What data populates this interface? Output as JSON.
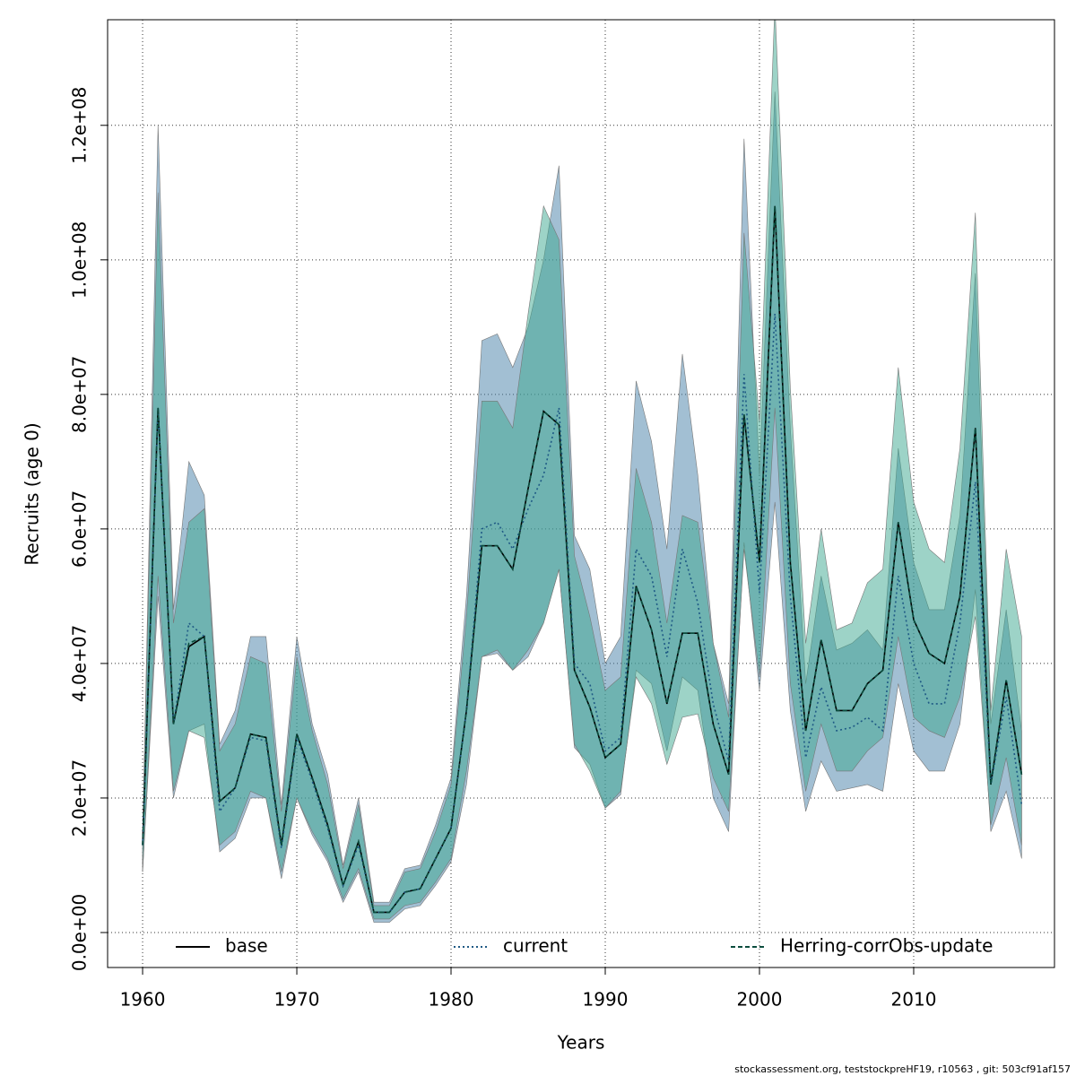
{
  "chart_data": {
    "type": "line",
    "xlabel": "Years",
    "ylabel": "Recruits (age 0)",
    "footnote": "stockassessment.org, teststockpreHF19, r10563 , git: 503cf91af157",
    "xlim": [
      1957.73,
      2019.13
    ],
    "ylim": [
      -5200000.0,
      135700000.0
    ],
    "xticks": [
      1960,
      1970,
      1980,
      1990,
      2000,
      2010
    ],
    "yticks": [
      {
        "value": 0,
        "label": "0.0e+00"
      },
      {
        "value": 20000000.0,
        "label": "2.0e+07"
      },
      {
        "value": 40000000.0,
        "label": "4.0e+07"
      },
      {
        "value": 60000000.0,
        "label": "6.0e+07"
      },
      {
        "value": 80000000.0,
        "label": "8.0e+07"
      },
      {
        "value": 100000000.0,
        "label": "1.0e+08"
      },
      {
        "value": 120000000.0,
        "label": "1.2e+08"
      }
    ],
    "grid": true,
    "legend": "bottom",
    "x": [
      1960,
      1961,
      1962,
      1963,
      1964,
      1965,
      1966,
      1967,
      1968,
      1969,
      1970,
      1971,
      1972,
      1973,
      1974,
      1975,
      1976,
      1977,
      1978,
      1979,
      1980,
      1981,
      1982,
      1983,
      1984,
      1985,
      1986,
      1987,
      1988,
      1989,
      1990,
      1991,
      1992,
      1993,
      1994,
      1995,
      1996,
      1997,
      1998,
      1999,
      2000,
      2001,
      2002,
      2003,
      2004,
      2005,
      2006,
      2007,
      2008,
      2009,
      2010,
      2011,
      2012,
      2013,
      2014,
      2015,
      2016,
      2017
    ],
    "series": [
      {
        "name": "base",
        "color": "#000000",
        "line_style": "solid",
        "values": [
          13000000.0,
          78000000.0,
          31000000.0,
          42500000.0,
          44000000.0,
          19500000.0,
          21500000.0,
          29500000.0,
          29000000.0,
          13000000.0,
          29500000.0,
          23000000.0,
          16000000.0,
          7000000.0,
          13500000.0,
          3000000.0,
          3000000.0,
          6000000.0,
          6500000.0,
          11000000.0,
          15500000.0,
          33000000.0,
          57500000.0,
          57500000.0,
          54000000.0,
          66000000.0,
          77500000.0,
          75500000.0,
          39000000.0,
          33500000.0,
          26000000.0,
          28000000.0,
          51500000.0,
          45000000.0,
          34000000.0,
          44500000.0,
          44500000.0,
          31000000.0,
          23500000.0,
          77000000.0,
          55000000.0,
          108000000.0,
          55000000.0,
          30000000.0,
          43500000.0,
          33000000.0,
          33000000.0,
          37000000.0,
          39000000.0,
          61000000.0,
          46500000.0,
          41500000.0,
          40000000.0,
          50000000.0,
          75000000.0,
          22000000.0,
          37500000.0,
          23500000.0
        ]
      },
      {
        "name": "current",
        "color": "#1f5a85",
        "line_style": "dotted",
        "band_color": "#467fa7",
        "values": [
          13000000.0,
          78000000.0,
          31000000.0,
          46000000.0,
          44000000.0,
          18000000.0,
          21500000.0,
          29000000.0,
          28500000.0,
          12500000.0,
          29000000.0,
          22500000.0,
          15500000.0,
          7000000.0,
          13000000.0,
          3000000.0,
          3000000.0,
          6000000.0,
          6500000.0,
          11000000.0,
          15500000.0,
          33000000.0,
          60000000.0,
          61000000.0,
          57000000.0,
          63000000.0,
          68000000.0,
          78000000.0,
          40000000.0,
          37000000.0,
          27000000.0,
          29000000.0,
          57000000.0,
          53000000.0,
          41000000.0,
          57000000.0,
          49000000.0,
          34000000.0,
          25500000.0,
          83000000.0,
          50500000.0,
          92000000.0,
          50000000.0,
          26000000.0,
          36500000.0,
          30000000.0,
          30500000.0,
          32000000.0,
          30000000.0,
          53000000.0,
          40000000.0,
          34000000.0,
          34000000.0,
          46000000.0,
          67000000.0,
          22000000.0,
          35000000.0,
          19000000.0
        ],
        "lower": [
          9000000.0,
          50000000.0,
          20000000.0,
          30000000.0,
          31000000.0,
          12000000.0,
          14000000.0,
          20000000.0,
          20000000.0,
          8000000.0,
          20000000.0,
          14500000.0,
          10500000.0,
          4500000.0,
          9000000.0,
          1500000.0,
          1500000.0,
          3500000.0,
          4000000.0,
          7000000.0,
          10500000.0,
          22000000.0,
          41000000.0,
          41500000.0,
          39000000.0,
          41000000.0,
          46000000.0,
          54000000.0,
          27500000.0,
          25000000.0,
          18500000.0,
          20500000.0,
          39000000.0,
          37000000.0,
          27000000.0,
          38000000.0,
          36000000.0,
          20000000.0,
          15000000.0,
          58000000.0,
          36000000.0,
          64000000.0,
          33000000.0,
          18000000.0,
          25500000.0,
          21000000.0,
          21500000.0,
          22000000.0,
          21000000.0,
          37000000.0,
          27000000.0,
          24000000.0,
          24000000.0,
          31000000.0,
          51000000.0,
          15000000.0,
          21000000.0,
          11000000.0
        ],
        "upper": [
          14000000.0,
          120000000.0,
          48000000.0,
          70000000.0,
          65000000.0,
          28000000.0,
          33000000.0,
          44000000.0,
          44000000.0,
          19000000.0,
          44000000.0,
          31000000.0,
          23500000.0,
          10000000.0,
          20000000.0,
          4500000.0,
          4500000.0,
          9500000.0,
          10000000.0,
          16000000.0,
          23000000.0,
          50000000.0,
          88000000.0,
          89000000.0,
          84000000.0,
          90000000.0,
          100000000.0,
          114000000.0,
          59000000.0,
          54000000.0,
          40000000.0,
          44000000.0,
          82000000.0,
          73000000.0,
          57000000.0,
          86000000.0,
          68000000.0,
          43000000.0,
          34000000.0,
          118000000.0,
          68000000.0,
          125000000.0,
          75000000.0,
          37000000.0,
          53000000.0,
          42000000.0,
          43000000.0,
          45000000.0,
          42000000.0,
          72000000.0,
          55000000.0,
          48000000.0,
          48000000.0,
          62000000.0,
          98000000.0,
          31000000.0,
          48000000.0,
          30000000.0
        ]
      },
      {
        "name": "Herring-corrObs-update",
        "color": "#0b4d3e",
        "line_style": "dashed",
        "band_color": "#3ba78f",
        "values": [
          13000000.0,
          78000000.0,
          31000000.0,
          43000000.0,
          44000000.0,
          19500000.0,
          21500000.0,
          29500000.0,
          29000000.0,
          13000000.0,
          29500000.0,
          23000000.0,
          16000000.0,
          7000000.0,
          13500000.0,
          3000000.0,
          3000000.0,
          6000000.0,
          6500000.0,
          11000000.0,
          15500000.0,
          33000000.0,
          57500000.0,
          57500000.0,
          54000000.0,
          66000000.0,
          77500000.0,
          75500000.0,
          39000000.0,
          33500000.0,
          26000000.0,
          28000000.0,
          51500000.0,
          45000000.0,
          34000000.0,
          44500000.0,
          44500000.0,
          31000000.0,
          23500000.0,
          77000000.0,
          55000000.0,
          108000000.0,
          55000000.0,
          30000000.0,
          43500000.0,
          33000000.0,
          33000000.0,
          37000000.0,
          39000000.0,
          61000000.0,
          46500000.0,
          41500000.0,
          40000000.0,
          50000000.0,
          75000000.0,
          22000000.0,
          37500000.0,
          23500000.0
        ],
        "lower": [
          9000000.0,
          53000000.0,
          21000000.0,
          30000000.0,
          29000000.0,
          13000000.0,
          15000000.0,
          21000000.0,
          20000000.0,
          9000000.0,
          20000000.0,
          15000000.0,
          11000000.0,
          5000000.0,
          9500000.0,
          2000000.0,
          2000000.0,
          4000000.0,
          4500000.0,
          7500000.0,
          11000000.0,
          24000000.0,
          41000000.0,
          42000000.0,
          39000000.0,
          42000000.0,
          46000000.0,
          54000000.0,
          28000000.0,
          24000000.0,
          18500000.0,
          21000000.0,
          38000000.0,
          34000000.0,
          25000000.0,
          32000000.0,
          32500000.0,
          23000000.0,
          18000000.0,
          57000000.0,
          38000000.0,
          78000000.0,
          37000000.0,
          21000000.0,
          31000000.0,
          24000000.0,
          24000000.0,
          27000000.0,
          29000000.0,
          44000000.0,
          32000000.0,
          30000000.0,
          29000000.0,
          35000000.0,
          47000000.0,
          16000000.0,
          26000000.0,
          13000000.0
        ],
        "upper": [
          14000000.0,
          110000000.0,
          46000000.0,
          61000000.0,
          63000000.0,
          27000000.0,
          31000000.0,
          41000000.0,
          40000000.0,
          18000000.0,
          41000000.0,
          30000000.0,
          22000000.0,
          9500000.0,
          19000000.0,
          4000000.0,
          4000000.0,
          9000000.0,
          9500000.0,
          15000000.0,
          22000000.0,
          47000000.0,
          79000000.0,
          79000000.0,
          75000000.0,
          92000000.0,
          108000000.0,
          103000000.0,
          56000000.0,
          47000000.0,
          36000000.0,
          38000000.0,
          69000000.0,
          61000000.0,
          46000000.0,
          62000000.0,
          61000000.0,
          43000000.0,
          32000000.0,
          104000000.0,
          76000000.0,
          138000000.0,
          81000000.0,
          43000000.0,
          60000000.0,
          45000000.0,
          46000000.0,
          52000000.0,
          54000000.0,
          84000000.0,
          64000000.0,
          57000000.0,
          55000000.0,
          72000000.0,
          107000000.0,
          33000000.0,
          57000000.0,
          44000000.0
        ]
      }
    ]
  }
}
